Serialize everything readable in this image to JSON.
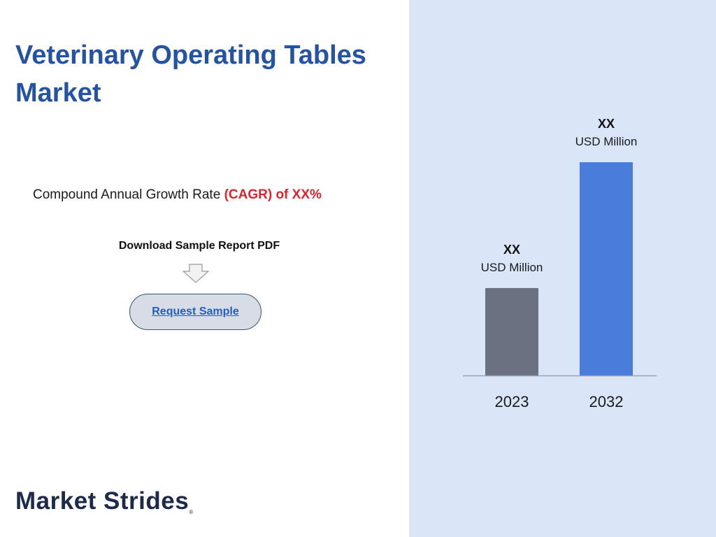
{
  "header": {
    "title": "Veterinary Operating Tables Market"
  },
  "cagr": {
    "prefix": "Compound Annual Growth Rate ",
    "highlight": "(CAGR) of XX%"
  },
  "download": {
    "label": "Download Sample Report PDF",
    "arrow_icon": "down-arrow-icon"
  },
  "button": {
    "label": "Request Sample"
  },
  "logo": {
    "text": "Market Strides",
    "mark": "®"
  },
  "colors": {
    "title": "#2553a3",
    "highlight": "#e0242c",
    "panel": "#dae5f7",
    "bar_2023": "#6b7180",
    "bar_2032": "#4a7ddb"
  },
  "chart_data": {
    "type": "bar",
    "categories": [
      "2023",
      "2032"
    ],
    "values": [
      41,
      100
    ],
    "value_labels": [
      {
        "main": "XX",
        "unit": "USD Million"
      },
      {
        "main": "XX",
        "unit": "USD Million"
      }
    ],
    "colors": [
      "#6b7180",
      "#4a7ddb"
    ],
    "title": "",
    "xlabel": "",
    "ylabel": "",
    "ylim": [
      0,
      100
    ],
    "grid": false,
    "legend": "none"
  }
}
